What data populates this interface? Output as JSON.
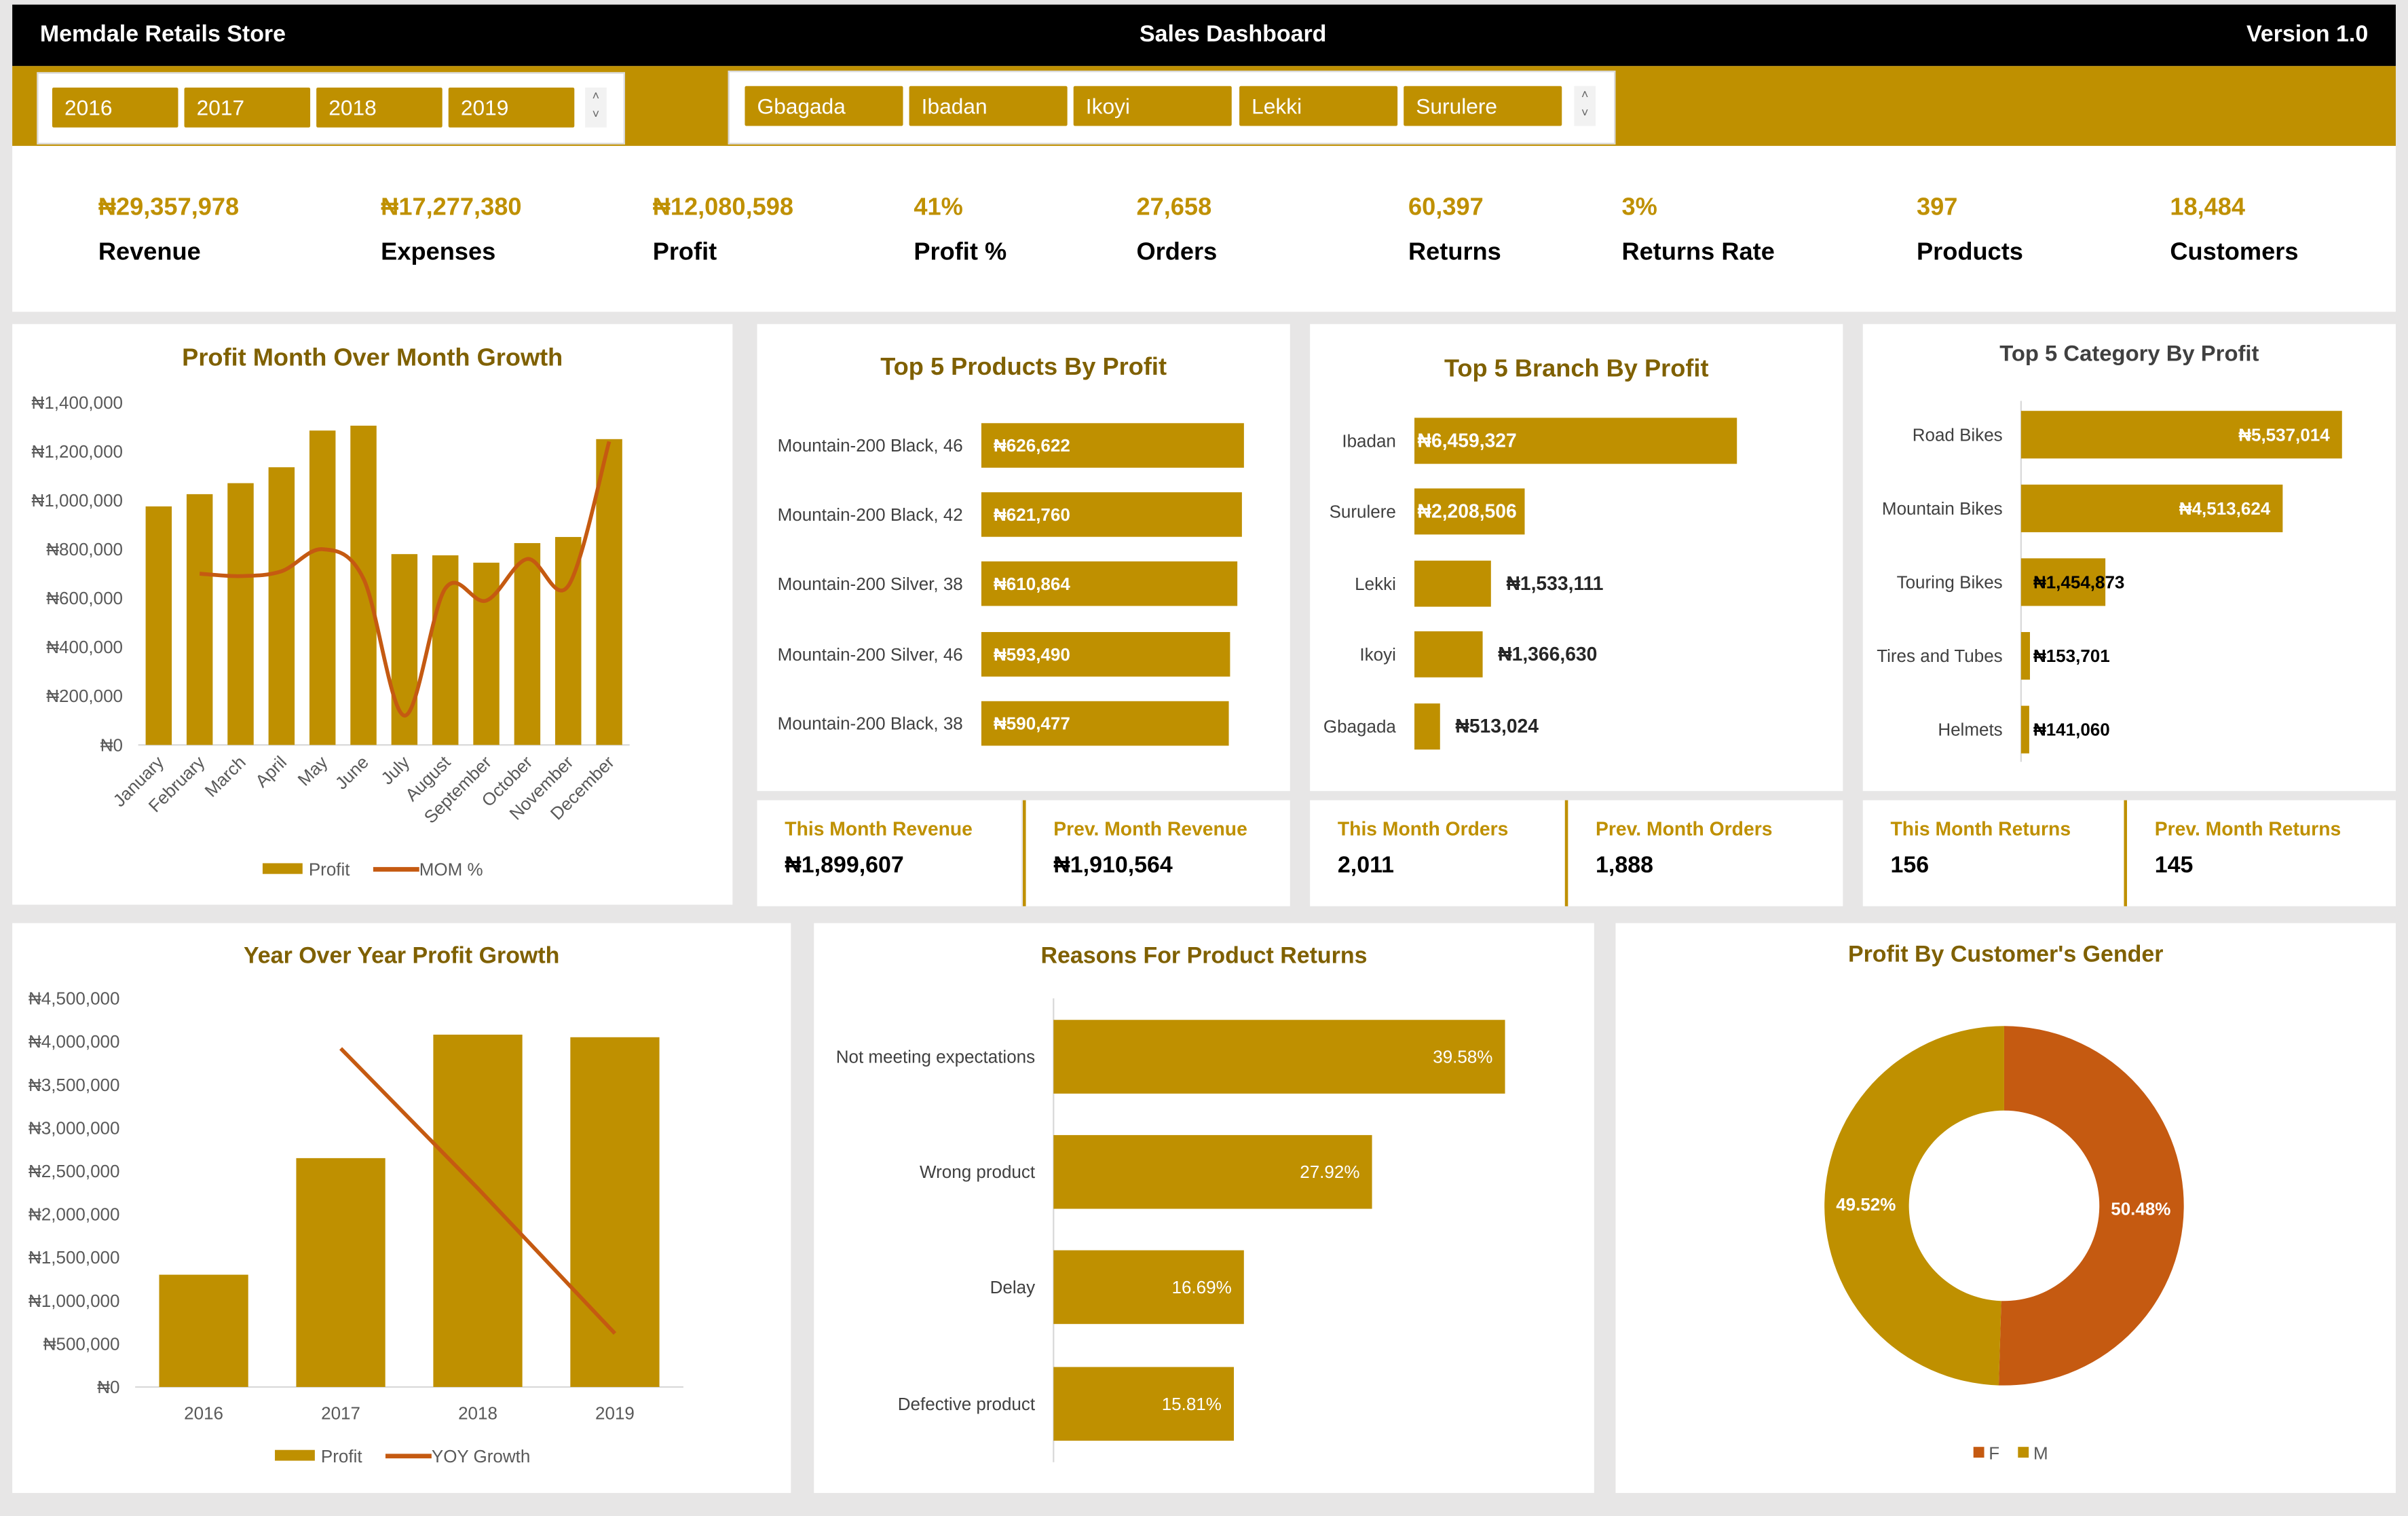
{
  "header": {
    "store": "Memdale Retails Store",
    "title": "Sales Dashboard",
    "version": "Version 1.0"
  },
  "year_slicer": {
    "items": [
      "2016",
      "2017",
      "2018",
      "2019"
    ],
    "scroll_up": "˄",
    "scroll_down": "˅"
  },
  "branch_slicer": {
    "items": [
      "Gbagada",
      "Ibadan",
      "Ikoyi",
      "Lekki",
      "Surulere"
    ],
    "scroll_up": "˄",
    "scroll_down": "˅"
  },
  "kpis": [
    {
      "value": "₦29,357,978",
      "label": "Revenue"
    },
    {
      "value": "₦17,277,380",
      "label": "Expenses"
    },
    {
      "value": "₦12,080,598",
      "label": "Profit"
    },
    {
      "value": "41%",
      "label": "Profit %"
    },
    {
      "value": "27,658",
      "label": "Orders"
    },
    {
      "value": "60,397",
      "label": "Returns"
    },
    {
      "value": "3%",
      "label": "Returns Rate"
    },
    {
      "value": "397",
      "label": "Products"
    },
    {
      "value": "18,484",
      "label": "Customers"
    }
  ],
  "cards": [
    {
      "label": "This Month Revenue",
      "value": "₦1,899,607"
    },
    {
      "label": "Prev. Month Revenue",
      "value": "₦1,910,564"
    },
    {
      "label": "This Month Orders",
      "value": "2,011"
    },
    {
      "label": "Prev. Month Orders",
      "value": "1,888"
    },
    {
      "label": "This Month Returns",
      "value": "156"
    },
    {
      "label": "Prev. Month Returns",
      "value": "145"
    }
  ],
  "colors": {
    "gold": "#bf9000",
    "orange": "#c55a11",
    "title": "#7f6000",
    "header": "#000000"
  },
  "chart_data": [
    {
      "id": "mom",
      "type": "bar+line",
      "title": "Profit Month Over Month Growth",
      "categories": [
        "January",
        "February",
        "March",
        "April",
        "May",
        "June",
        "July",
        "August",
        "September",
        "October",
        "November",
        "December"
      ],
      "series": [
        {
          "name": "Profit",
          "type": "bar",
          "values": [
            975000,
            1025000,
            1070000,
            1135000,
            1285000,
            1305000,
            780000,
            775000,
            745000,
            825000,
            850000,
            1250000
          ]
        },
        {
          "name": "MOM %",
          "type": "line",
          "values": [
            null,
            700000,
            690000,
            710000,
            800000,
            680000,
            120000,
            640000,
            590000,
            760000,
            650000,
            1240000
          ]
        }
      ],
      "ylim": [
        0,
        1400000
      ],
      "yticks": [
        "₦0",
        "₦200,000",
        "₦400,000",
        "₦600,000",
        "₦800,000",
        "₦1,000,000",
        "₦1,200,000",
        "₦1,400,000"
      ],
      "legend": "bottom"
    },
    {
      "id": "products",
      "type": "bar",
      "orientation": "horizontal",
      "title": "Top 5 Products By Profit",
      "categories": [
        "Mountain-200 Black, 46",
        "Mountain-200 Black, 42",
        "Mountain-200 Silver, 38",
        "Mountain-200 Silver, 46",
        "Mountain-200 Black, 38"
      ],
      "values": [
        626622,
        621760,
        610864,
        593490,
        590477
      ],
      "labels": [
        "₦626,622",
        "₦621,760",
        "₦610,864",
        "₦593,490",
        "₦590,477"
      ]
    },
    {
      "id": "branches",
      "type": "bar",
      "orientation": "horizontal",
      "title": "Top 5 Branch By Profit",
      "categories": [
        "Ibadan",
        "Surulere",
        "Lekki",
        "Ikoyi",
        "Gbagada"
      ],
      "values": [
        6459327,
        2208506,
        1533111,
        1366630,
        513024
      ],
      "labels": [
        "₦6,459,327",
        "₦2,208,506",
        "₦1,533,111",
        "₦1,366,630",
        "₦513,024"
      ]
    },
    {
      "id": "categories",
      "type": "bar",
      "orientation": "horizontal",
      "title": "Top 5 Category By Profit",
      "categories": [
        "Road Bikes",
        "Mountain Bikes",
        "Touring Bikes",
        "Tires and Tubes",
        "Helmets"
      ],
      "values": [
        5537014,
        4513624,
        1454873,
        153701,
        141060
      ],
      "labels": [
        "₦5,537,014",
        "₦4,513,624",
        "₦1,454,873",
        "₦153,701",
        "₦141,060"
      ]
    },
    {
      "id": "yoy",
      "type": "bar+line",
      "title": "Year Over Year Profit Growth",
      "categories": [
        "2016",
        "2017",
        "2018",
        "2019"
      ],
      "series": [
        {
          "name": "Profit",
          "type": "bar",
          "values": [
            1300000,
            2650000,
            4080000,
            4050000
          ]
        },
        {
          "name": "YOY Growth",
          "type": "line",
          "values": [
            null,
            3920000,
            2300000,
            620000
          ]
        }
      ],
      "ylim": [
        0,
        4500000
      ],
      "yticks": [
        "₦0",
        "₦500,000",
        "₦1,000,000",
        "₦1,500,000",
        "₦2,000,000",
        "₦2,500,000",
        "₦3,000,000",
        "₦3,500,000",
        "₦4,000,000",
        "₦4,500,000"
      ],
      "legend": "bottom"
    },
    {
      "id": "returns",
      "type": "bar",
      "orientation": "horizontal",
      "title": "Reasons For Product Returns",
      "categories": [
        "Not meeting expectations",
        "Wrong product",
        "Delay",
        "Defective product"
      ],
      "values": [
        39.58,
        27.92,
        16.69,
        15.81
      ],
      "labels": [
        "39.58%",
        "27.92%",
        "16.69%",
        "15.81%"
      ]
    },
    {
      "id": "gender",
      "type": "pie",
      "donut": true,
      "title": "Profit By Customer's Gender",
      "categories": [
        "F",
        "M"
      ],
      "values": [
        50.48,
        49.52
      ],
      "labels": [
        "50.48%",
        "49.52%"
      ],
      "legend": "bottom"
    }
  ]
}
